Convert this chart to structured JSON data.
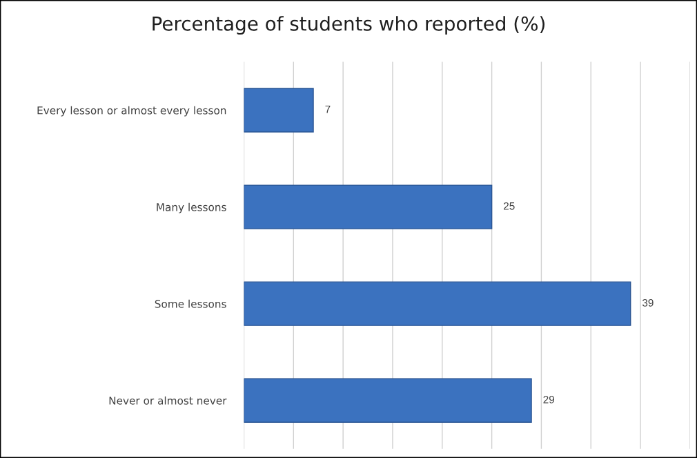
{
  "chart_data": {
    "type": "bar",
    "orientation": "horizontal",
    "title": "Percentage of students who reported (%)",
    "categories": [
      "Every lesson or almost every lesson",
      "Many lessons",
      "Some lessons",
      "Never or almost never"
    ],
    "values": [
      7,
      25,
      39,
      29
    ],
    "color": "#3b72bf",
    "xlim": [
      0,
      45
    ],
    "xticks": [
      {
        "value": 0,
        "label": null
      },
      {
        "value": 5,
        "label": null
      },
      {
        "value": 10,
        "label": null
      },
      {
        "value": 15,
        "label": null
      },
      {
        "value": 20,
        "label": null
      },
      {
        "value": 25,
        "label": null
      },
      {
        "value": 30,
        "label": null
      },
      {
        "value": 35,
        "label": null
      },
      {
        "value": 40,
        "label": null
      },
      {
        "value": 45,
        "label": null
      }
    ],
    "tick_labels": "y",
    "grid": "x",
    "data_labels": true,
    "legend": false
  }
}
